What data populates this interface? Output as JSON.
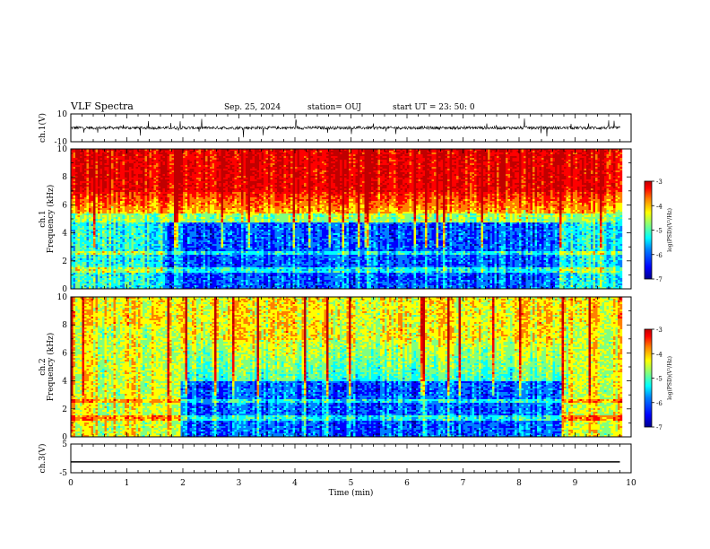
{
  "header": {
    "title": "VLF Spectra",
    "date": "Sep. 25, 2024",
    "station": "station= OUJ",
    "start": "start  UT  =   23: 50: 0"
  },
  "chart_data": [
    {
      "type": "line",
      "panel": "ch1-waveform",
      "ylabel": "ch.1(V)",
      "ylim": [
        -10,
        10
      ],
      "y_ticks": [
        "10",
        "-10"
      ],
      "description_series": "noisy waveform centered near 0 V",
      "x_range": [
        0,
        9.8
      ]
    },
    {
      "type": "heatmap",
      "panel": "ch1-spectrogram",
      "ylabel": "ch.1\nFrequency  (kHz)",
      "ylabel_line1": "ch.1",
      "ylabel_line2": "Frequency  (kHz)",
      "ylim": [
        0,
        10
      ],
      "y_ticks": [
        "0",
        "2",
        "4",
        "6",
        "8",
        "10"
      ],
      "x_range": [
        0,
        9.8
      ],
      "colorbar": {
        "label": "log(PSD)(V²/Hz)",
        "range": [
          -7,
          -3
        ],
        "ticks": [
          "-3",
          "-4",
          "-5",
          "-6",
          "-7"
        ]
      }
    },
    {
      "type": "heatmap",
      "panel": "ch2-spectrogram",
      "ylabel_line1": "ch.2",
      "ylabel_line2": "Frequency  (kHz)",
      "ylim": [
        0,
        10
      ],
      "y_ticks": [
        "0",
        "2",
        "4",
        "6",
        "8",
        "10"
      ],
      "x_range": [
        0,
        9.8
      ],
      "colorbar": {
        "label": "log(PSD)(V²/Hz)",
        "range": [
          -7,
          -3
        ],
        "ticks": [
          "-3",
          "-4",
          "-5",
          "-6",
          "-7"
        ]
      }
    },
    {
      "type": "line",
      "panel": "ch3-waveform",
      "ylabel": "ch.3(V)",
      "ylim": [
        -5,
        5
      ],
      "y_ticks": [
        "5",
        "-5"
      ],
      "x": [
        0,
        9.8
      ],
      "y": [
        -1.2,
        -1.2
      ],
      "x_range": [
        0,
        9.8
      ]
    }
  ],
  "x_axis": {
    "label": "Time  (min)",
    "range": [
      0,
      10
    ],
    "ticks": [
      "0",
      "1",
      "2",
      "3",
      "4",
      "5",
      "6",
      "7",
      "8",
      "9",
      "10"
    ]
  },
  "colors": {
    "colormap": [
      "#00008f",
      "#0000ff",
      "#0080ff",
      "#00ffff",
      "#80ff80",
      "#ffff00",
      "#ff8000",
      "#ff0000",
      "#c00000"
    ]
  }
}
